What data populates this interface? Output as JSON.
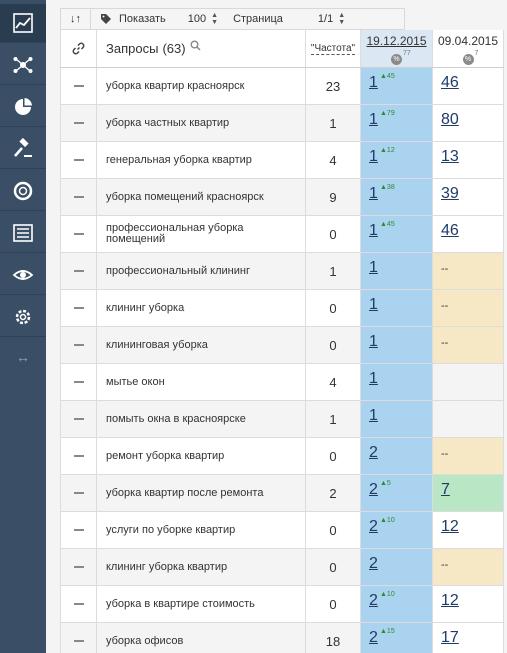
{
  "sidebar": {
    "items": [
      {
        "icon": "analytics-chart-icon",
        "active": true
      },
      {
        "icon": "network-icon",
        "active": false
      },
      {
        "icon": "pie-chart-icon",
        "active": false
      },
      {
        "icon": "gavel-icon",
        "active": false
      },
      {
        "icon": "lifebuoy-icon",
        "active": false
      },
      {
        "icon": "report-list-icon",
        "active": false
      },
      {
        "icon": "eye-icon",
        "active": false
      },
      {
        "icon": "gear-icon",
        "active": false
      }
    ],
    "resize_glyph": "↔"
  },
  "toolbar": {
    "sort_glyph": "↓↑",
    "show_label": "Показать",
    "show_value": "100",
    "page_label": "Страница",
    "page_value": "1/1"
  },
  "table": {
    "query_header": "Запросы",
    "query_count": "(63)",
    "freq_header": "\"Частота\"",
    "date1": "19.12.2015",
    "date1_pct": "%",
    "date1_pct_sup": "77",
    "date2": "09.04.2015",
    "date2_pct": "%",
    "date2_pct_sup": "7",
    "rows": [
      {
        "query": "уборка квартир красноярск",
        "freq": "23",
        "pos1": "1",
        "chg1": "▲45",
        "pos2": "46",
        "pos2_state": "normal"
      },
      {
        "query": "уборка частных квартир",
        "freq": "1",
        "pos1": "1",
        "chg1": "▲79",
        "pos2": "80",
        "pos2_state": "normal"
      },
      {
        "query": "генеральная уборка квартир",
        "freq": "4",
        "pos1": "1",
        "chg1": "▲12",
        "pos2": "13",
        "pos2_state": "normal"
      },
      {
        "query": "уборка помещений красноярск",
        "freq": "9",
        "pos1": "1",
        "chg1": "▲38",
        "pos2": "39",
        "pos2_state": "normal"
      },
      {
        "query": "профессиональная уборка помещений",
        "freq": "0",
        "pos1": "1",
        "chg1": "▲45",
        "pos2": "46",
        "pos2_state": "normal"
      },
      {
        "query": "профессиональный клининг",
        "freq": "1",
        "pos1": "1",
        "chg1": "",
        "pos2": "--",
        "pos2_state": "na"
      },
      {
        "query": "клининг уборка",
        "freq": "0",
        "pos1": "1",
        "chg1": "",
        "pos2": "--",
        "pos2_state": "na"
      },
      {
        "query": "клининговая уборка",
        "freq": "0",
        "pos1": "1",
        "chg1": "",
        "pos2": "--",
        "pos2_state": "na"
      },
      {
        "query": "мытье окон",
        "freq": "4",
        "pos1": "1",
        "chg1": "",
        "pos2": "",
        "pos2_state": "empty"
      },
      {
        "query": "помыть окна в красноярске",
        "freq": "1",
        "pos1": "1",
        "chg1": "",
        "pos2": "",
        "pos2_state": "empty"
      },
      {
        "query": "ремонт уборка квартир",
        "freq": "0",
        "pos1": "2",
        "chg1": "",
        "pos2": "--",
        "pos2_state": "na"
      },
      {
        "query": "уборка квартир после ремонта",
        "freq": "2",
        "pos1": "2",
        "chg1": "▲5",
        "pos2": "7",
        "pos2_state": "green"
      },
      {
        "query": "услуги по уборке квартир",
        "freq": "0",
        "pos1": "2",
        "chg1": "▲10",
        "pos2": "12",
        "pos2_state": "normal"
      },
      {
        "query": "клининг уборка квартир",
        "freq": "0",
        "pos1": "2",
        "chg1": "",
        "pos2": "--",
        "pos2_state": "na"
      },
      {
        "query": "уборка в квартире стоимость",
        "freq": "0",
        "pos1": "2",
        "chg1": "▲10",
        "pos2": "12",
        "pos2_state": "normal"
      },
      {
        "query": "уборка офисов",
        "freq": "18",
        "pos1": "2",
        "chg1": "▲15",
        "pos2": "17",
        "pos2_state": "normal"
      }
    ]
  },
  "colors": {
    "sidebar": "#3a4f66",
    "date1_column": "#a9d3ef",
    "no_data": "#f6e8c4",
    "improved": "#b9e6c4",
    "link": "#1f3b66",
    "change_up": "#2e8b2e"
  }
}
